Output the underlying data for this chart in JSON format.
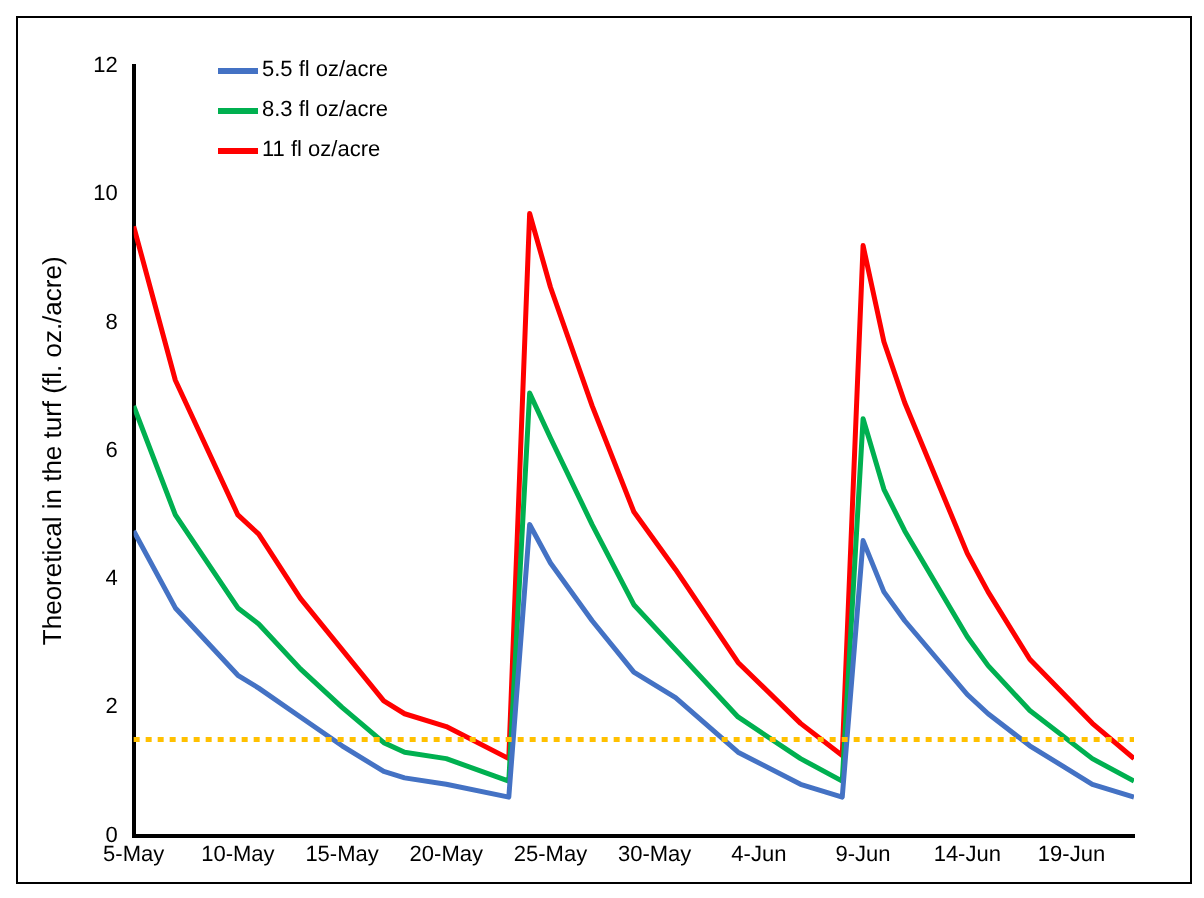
{
  "chart_data": {
    "type": "line",
    "ylabel": "Theoretical in the turf (fl. oz./acre)",
    "x": [
      "--05-05",
      "--05-07",
      "--05-10",
      "--05-11",
      "--05-13",
      "--05-15",
      "--05-17",
      "--05-18",
      "--05-20",
      "--05-23",
      "--05-24",
      "--05-25",
      "--05-27",
      "--05-29",
      "--05-31",
      "--06-03",
      "--06-06",
      "--06-08",
      "--06-09",
      "--06-10",
      "--06-11",
      "--06-14",
      "--06-15",
      "--06-17",
      "--06-20",
      "--06-22"
    ],
    "series": [
      {
        "name": "5.5 fl oz/acre",
        "color": "#4472c4",
        "values": [
          4.75,
          3.55,
          2.5,
          2.3,
          1.85,
          1.4,
          1.0,
          0.9,
          0.8,
          0.6,
          4.85,
          4.25,
          3.35,
          2.55,
          2.15,
          1.3,
          0.8,
          0.6,
          4.6,
          3.8,
          3.35,
          2.2,
          1.9,
          1.4,
          0.8,
          0.6
        ]
      },
      {
        "name": "8.3 fl oz/acre",
        "color": "#00b050",
        "values": [
          6.7,
          5.0,
          3.55,
          3.3,
          2.6,
          2.0,
          1.45,
          1.3,
          1.2,
          0.85,
          6.9,
          6.2,
          4.85,
          3.6,
          2.9,
          1.85,
          1.2,
          0.85,
          6.5,
          5.4,
          4.75,
          3.1,
          2.65,
          1.95,
          1.2,
          0.85
        ]
      },
      {
        "name": "11 fl oz/acre",
        "color": "#ff0000",
        "values": [
          9.5,
          7.1,
          5.0,
          4.7,
          3.7,
          2.9,
          2.1,
          1.9,
          1.7,
          1.2,
          9.7,
          8.55,
          6.7,
          5.05,
          4.15,
          2.7,
          1.75,
          1.25,
          9.2,
          7.7,
          6.75,
          4.4,
          3.8,
          2.75,
          1.75,
          1.2
        ]
      }
    ],
    "xlim": [
      "--05-05",
      "--06-22"
    ],
    "xticks": [
      {
        "value": "--05-05",
        "label": "5-May"
      },
      {
        "value": "--05-10",
        "label": "10-May"
      },
      {
        "value": "--05-15",
        "label": "15-May"
      },
      {
        "value": "--05-20",
        "label": "20-May"
      },
      {
        "value": "--05-25",
        "label": "25-May"
      },
      {
        "value": "--05-30",
        "label": "30-May"
      },
      {
        "value": "--06-04",
        "label": "4-Jun"
      },
      {
        "value": "--06-09",
        "label": "9-Jun"
      },
      {
        "value": "--06-14",
        "label": "14-Jun"
      },
      {
        "value": "--06-19",
        "label": "19-Jun"
      }
    ],
    "ylim": [
      0,
      12
    ],
    "yticks": [
      0,
      2,
      4,
      6,
      8,
      10,
      12
    ],
    "ref_lines": [
      {
        "axis": "y",
        "value": 1.5,
        "color": "#ffc000",
        "line_style": "dotted"
      }
    ],
    "grid": false,
    "legend": "top left",
    "marker": "none",
    "line_style": "solid"
  }
}
